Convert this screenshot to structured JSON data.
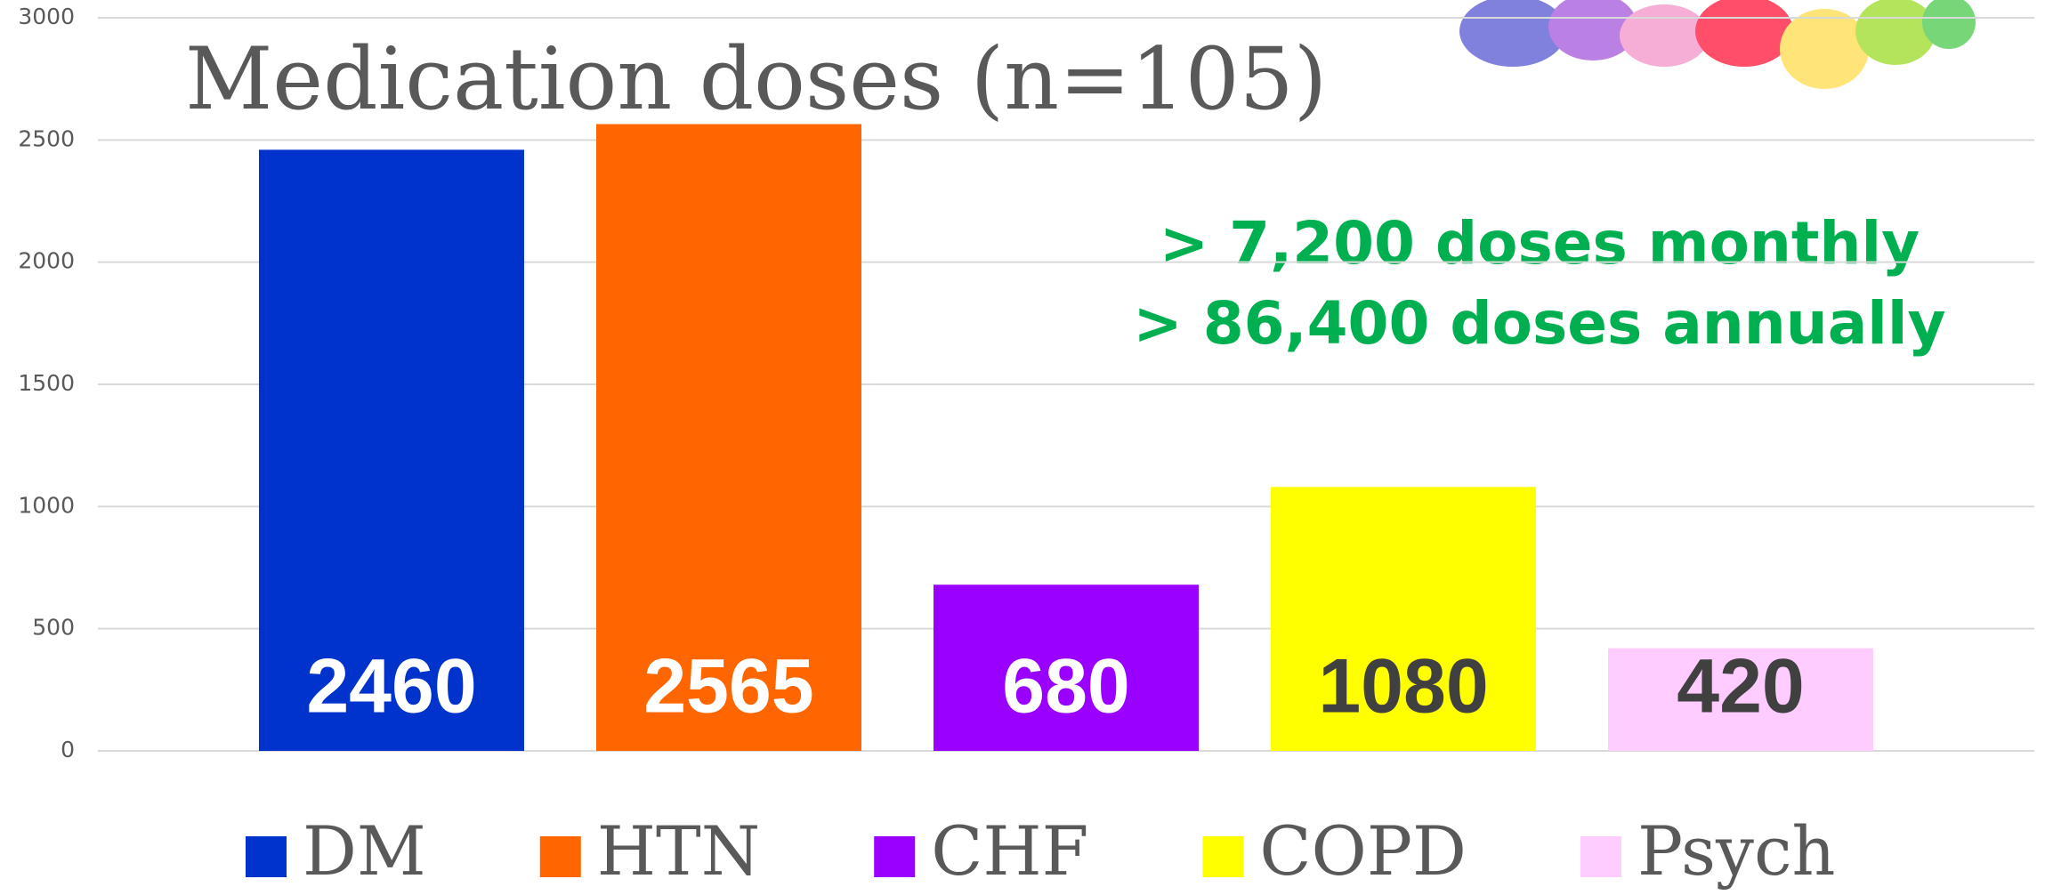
{
  "chart_data": {
    "type": "bar",
    "title": "Medication doses (n=105)",
    "annotations": [
      "> 7,200 doses monthly",
      "> 86,400 doses annually"
    ],
    "categories": [
      "DM",
      "HTN",
      "CHF",
      "COPD",
      "Psych"
    ],
    "values": [
      2460,
      2565,
      680,
      1080,
      420
    ],
    "colors": [
      "#0033cc",
      "#ff6600",
      "#9900ff",
      "#ffff00",
      "#ffccff"
    ],
    "label_colors": [
      "#ffffff",
      "#ffffff",
      "#ffffff",
      "#404040",
      "#404040"
    ],
    "ylim": [
      0,
      3000
    ],
    "yticks": [
      0,
      500,
      1000,
      1500,
      2000,
      2500,
      3000
    ],
    "grid": true,
    "legend": "bottom"
  }
}
